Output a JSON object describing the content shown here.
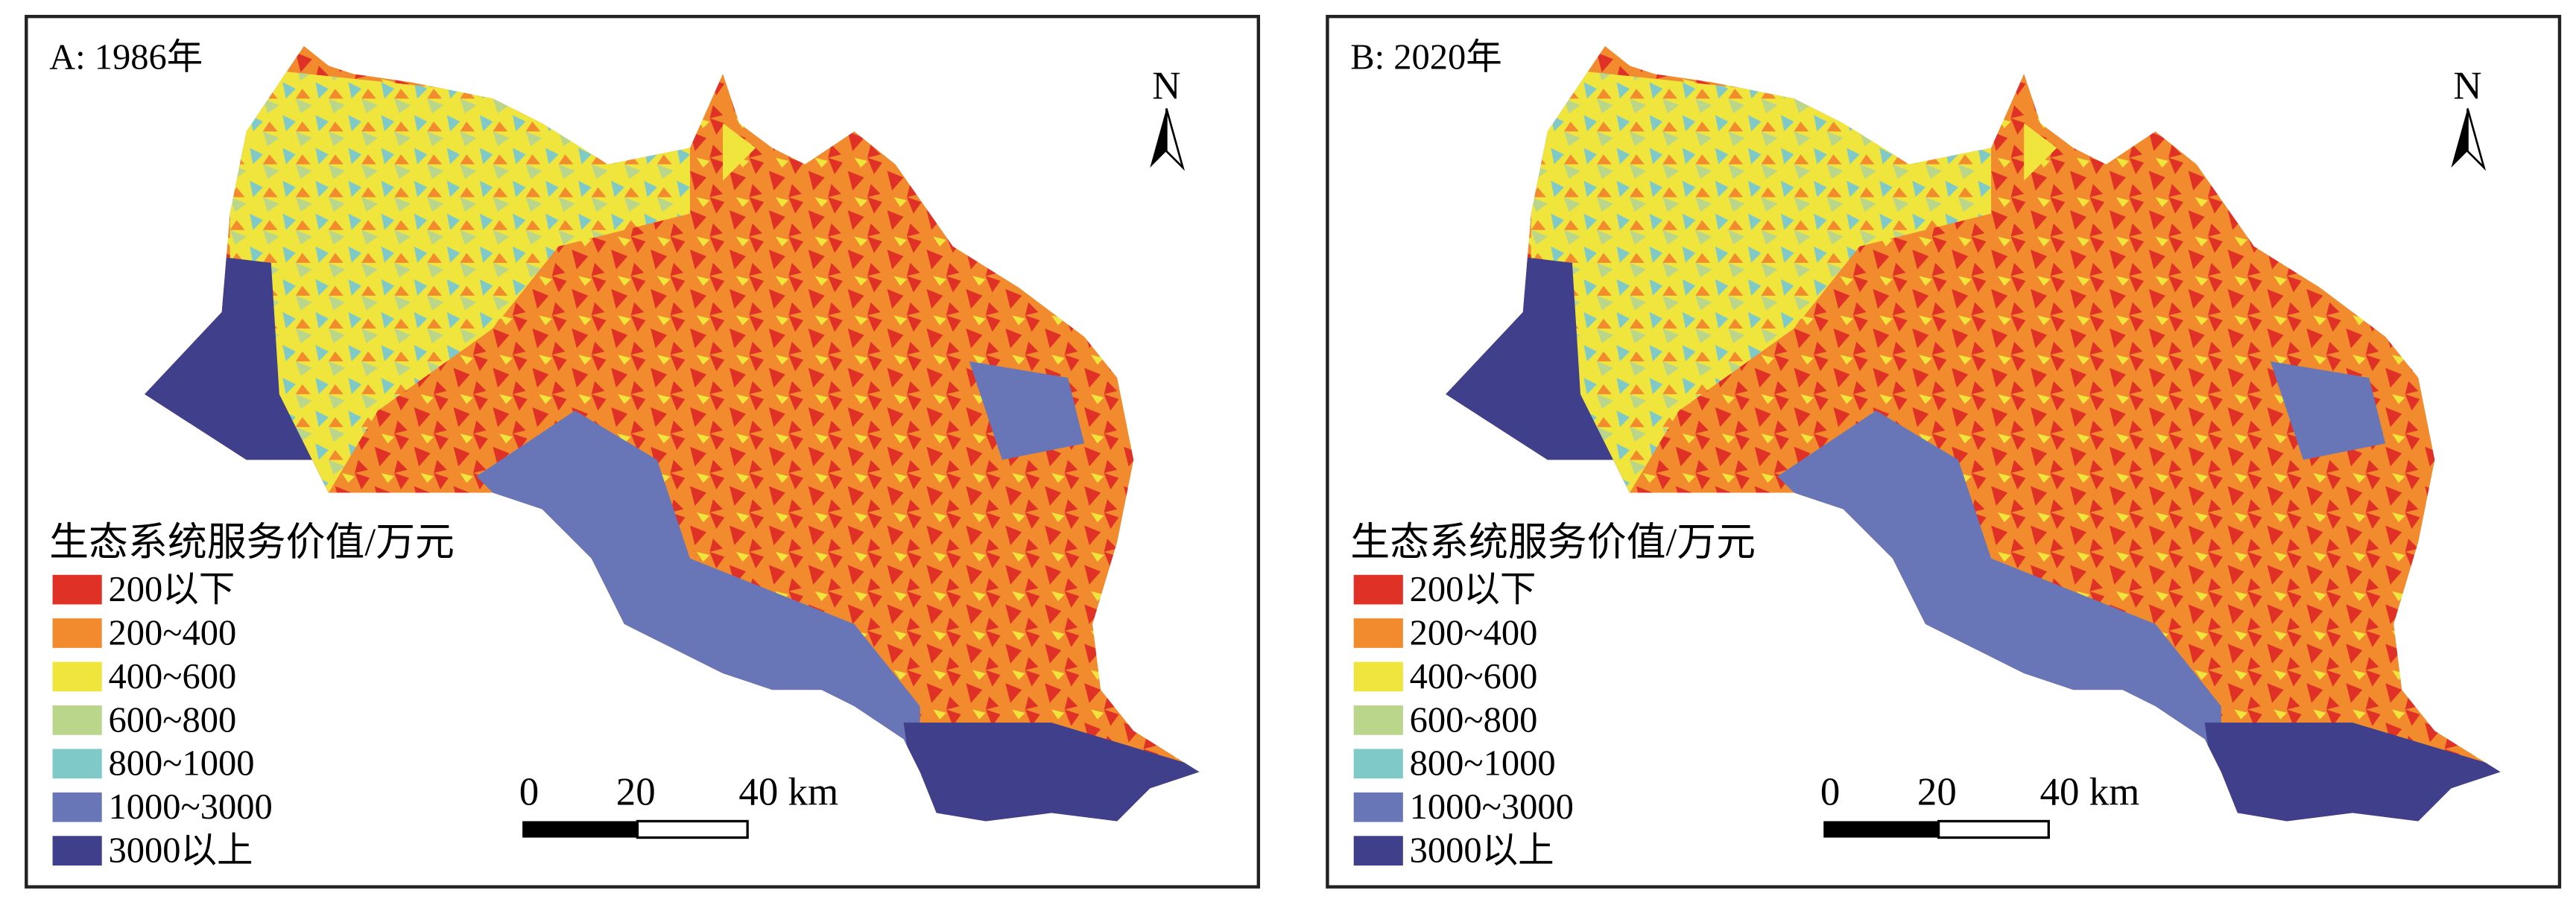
{
  "panels": [
    {
      "title": "A: 1986年"
    },
    {
      "title": "B: 2020年"
    }
  ],
  "legend": {
    "title": "生态系统服务价值/万元",
    "items": [
      {
        "label": "200以下",
        "color": "#e03127"
      },
      {
        "label": "200~400",
        "color": "#f28a2e"
      },
      {
        "label": "400~600",
        "color": "#efe53c"
      },
      {
        "label": "600~800",
        "color": "#b9d68a"
      },
      {
        "label": "800~1000",
        "color": "#7fcac9"
      },
      {
        "label": "1000~3000",
        "color": "#6876b8"
      },
      {
        "label": "3000以上",
        "color": "#3f3f8c"
      }
    ]
  },
  "scale_bar": {
    "labels": [
      "0",
      "20",
      "40 km"
    ]
  },
  "north": "N"
}
